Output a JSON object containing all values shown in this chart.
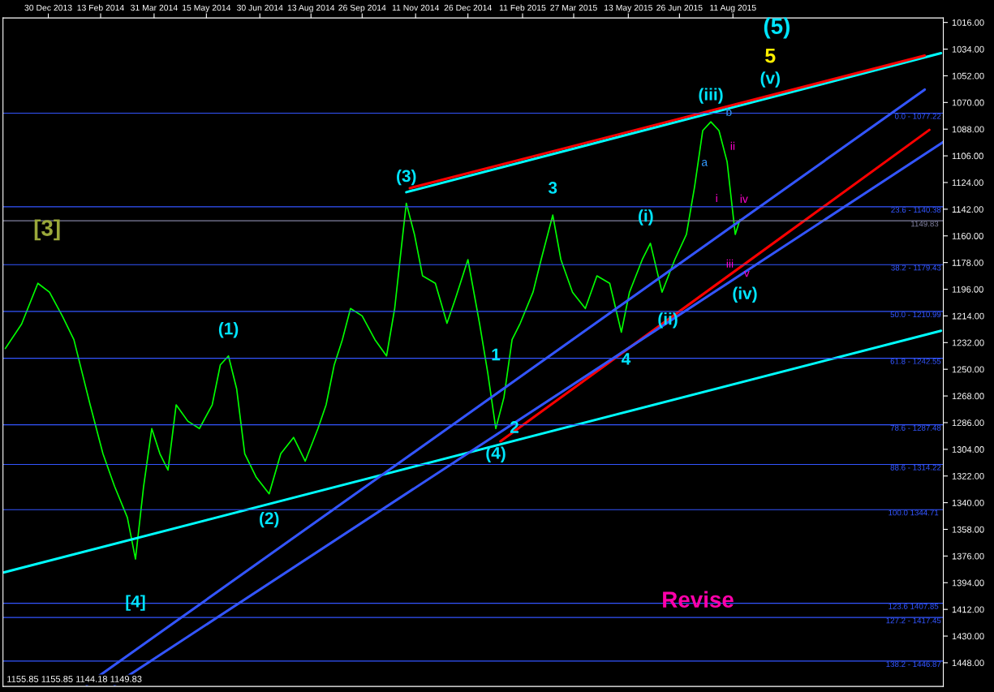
{
  "chart_data": {
    "type": "line",
    "x": [
      "2013-11-23",
      "2013-12-07",
      "2013-12-21",
      "2013-12-31",
      "2014-01-11",
      "2014-01-21",
      "2014-01-28",
      "2014-02-04",
      "2014-02-15",
      "2014-02-25",
      "2014-03-08",
      "2014-03-15",
      "2014-03-22",
      "2014-03-29",
      "2014-04-05",
      "2014-04-12",
      "2014-04-19",
      "2014-04-29",
      "2014-05-09",
      "2014-05-20",
      "2014-05-27",
      "2014-06-03",
      "2014-06-10",
      "2014-06-17",
      "2014-06-27",
      "2014-07-08",
      "2014-07-18",
      "2014-07-29",
      "2014-08-08",
      "2014-08-19",
      "2014-08-26",
      "2014-09-02",
      "2014-09-09",
      "2014-09-16",
      "2014-09-26",
      "2014-10-07",
      "2014-10-17",
      "2014-10-24",
      "2014-10-31",
      "2014-11-03",
      "2014-11-10",
      "2014-11-17",
      "2014-11-28",
      "2014-12-08",
      "2014-12-15",
      "2014-12-26",
      "2015-01-05",
      "2015-01-12",
      "2015-01-19",
      "2015-01-26",
      "2015-02-02",
      "2015-02-09",
      "2015-02-20",
      "2015-02-27",
      "2015-03-09",
      "2015-03-16",
      "2015-03-26",
      "2015-04-06",
      "2015-04-16",
      "2015-04-27",
      "2015-05-07",
      "2015-05-14",
      "2015-05-25",
      "2015-06-01",
      "2015-06-11",
      "2015-06-22",
      "2015-07-02",
      "2015-07-09",
      "2015-07-16",
      "2015-07-23",
      "2015-07-30",
      "2015-08-06",
      "2015-08-13",
      "2015-08-17"
    ],
    "series": [
      {
        "color": "#00ff00",
        "values": [
          1236,
          1219.5,
          1192,
          1198,
          1214,
          1230,
          1252,
          1274,
          1307,
          1329,
          1350,
          1378,
          1329,
          1290,
          1307,
          1318,
          1274,
          1285,
          1290,
          1274,
          1247,
          1241,
          1263,
          1307,
          1323,
          1334,
          1307,
          1296,
          1312,
          1290,
          1274,
          1247,
          1230,
          1209,
          1214,
          1230,
          1241,
          1209,
          1159,
          1138,
          1159,
          1187,
          1192,
          1219,
          1203,
          1176,
          1219,
          1252,
          1290,
          1269,
          1230,
          1219,
          1198,
          1176,
          1146,
          1176,
          1198,
          1209,
          1187,
          1192,
          1225,
          1198,
          1176,
          1165,
          1198,
          1176,
          1159,
          1127,
          1089,
          1083,
          1089,
          1110,
          1159,
          1149
        ]
      },
      {
        "color": "#00ffff",
        "x": [
          "2013-11-22",
          "2016-02-06"
        ],
        "values": [
          1387,
          1224
        ]
      },
      {
        "color": "#00ffff",
        "x": [
          "2014-11-03",
          "2016-02-06"
        ],
        "values": [
          1130.5,
          1036.7
        ]
      },
      {
        "color": "#ff0000",
        "x": [
          "2014-11-06",
          "2016-01-23"
        ],
        "values": [
          1127.8,
          1038.4
        ]
      },
      {
        "color": "#ff0000",
        "x": [
          "2015-01-23",
          "2016-01-27"
        ],
        "values": [
          1298.6,
          1088.5
        ]
      },
      {
        "color": "#3355ff",
        "x": [
          "2014-02-01",
          "2016-01-23"
        ],
        "values": [
          1462.8,
          1061.3
        ]
      },
      {
        "color": "#3355ff",
        "x": [
          "2014-02-25",
          "2016-02-08"
        ],
        "values": [
          1462.8,
          1096.7
        ]
      }
    ],
    "xlim": [
      "2013-11-21",
      "2016-02-08"
    ],
    "xticks": [
      {
        "value": "2013-12-30",
        "label": "30 Dec 2013"
      },
      {
        "value": "2014-02-13",
        "label": "13 Feb 2014"
      },
      {
        "value": "2014-03-31",
        "label": "31 Mar 2014"
      },
      {
        "value": "2014-05-15",
        "label": "15 May 2014"
      },
      {
        "value": "2014-06-30",
        "label": "30 Jun 2014"
      },
      {
        "value": "2014-08-13",
        "label": "13 Aug 2014"
      },
      {
        "value": "2014-09-26",
        "label": "26 Sep 2014"
      },
      {
        "value": "2014-11-11",
        "label": "11 Nov 2014"
      },
      {
        "value": "2014-12-26",
        "label": "26 Dec 2014"
      },
      {
        "value": "2015-02-11",
        "label": "11 Feb 2015"
      },
      {
        "value": "2015-03-27",
        "label": "27 Mar 2015"
      },
      {
        "value": "2015-05-13",
        "label": "13 May 2015"
      },
      {
        "value": "2015-06-26",
        "label": "26 Jun 2015"
      },
      {
        "value": "2015-08-11",
        "label": "11 Aug 2015"
      }
    ],
    "ylim": [
      1464,
      1013
    ],
    "yticks": [
      {
        "value": 1016,
        "label": "1016.00"
      },
      {
        "value": 1034,
        "label": "1034.00"
      },
      {
        "value": 1052,
        "label": "1052.00"
      },
      {
        "value": 1070,
        "label": "1070.00"
      },
      {
        "value": 1088,
        "label": "1088.00"
      },
      {
        "value": 1106,
        "label": "1106.00"
      },
      {
        "value": 1124,
        "label": "1124.00"
      },
      {
        "value": 1142,
        "label": "1142.00"
      },
      {
        "value": 1160,
        "label": "1160.00"
      },
      {
        "value": 1178,
        "label": "1178.00"
      },
      {
        "value": 1196,
        "label": "1196.00"
      },
      {
        "value": 1214,
        "label": "1214.00"
      },
      {
        "value": 1232,
        "label": "1232.00"
      },
      {
        "value": 1250,
        "label": "1250.00"
      },
      {
        "value": 1268,
        "label": "1268.00"
      },
      {
        "value": 1286,
        "label": "1286.00"
      },
      {
        "value": 1304,
        "label": "1304.00"
      },
      {
        "value": 1322,
        "label": "1322.00"
      },
      {
        "value": 1340,
        "label": "1340.00"
      },
      {
        "value": 1358,
        "label": "1358.00"
      },
      {
        "value": 1376,
        "label": "1376.00"
      },
      {
        "value": 1394,
        "label": "1394.00"
      },
      {
        "value": 1412,
        "label": "1412.00"
      },
      {
        "value": 1430,
        "label": "1430.00"
      },
      {
        "value": 1448,
        "label": "1448.00"
      }
    ],
    "ref_lines": [
      {
        "axis": "y",
        "value": 1077.22,
        "color": "#3355ff"
      },
      {
        "axis": "y",
        "value": 1140.38,
        "color": "#3355ff"
      },
      {
        "axis": "y",
        "value": 1149.83,
        "label": "1149.83",
        "color": "#8080a0"
      },
      {
        "axis": "y",
        "value": 1179.43,
        "color": "#3355ff"
      },
      {
        "axis": "y",
        "value": 1210.99,
        "color": "#3355ff"
      },
      {
        "axis": "y",
        "value": 1242.55,
        "color": "#3355ff"
      },
      {
        "axis": "y",
        "value": 1287.48,
        "color": "#3355ff"
      },
      {
        "axis": "y",
        "value": 1314.22,
        "color": "#3355ff"
      },
      {
        "axis": "y",
        "value": 1344.71,
        "label": "100.0 1344.71",
        "color": "#3355ff"
      },
      {
        "axis": "y",
        "value": 1407.85,
        "label": "123.6 1407.85",
        "color": "#3355ff"
      },
      {
        "axis": "y",
        "value": 1417.45,
        "color": "#3355ff"
      },
      {
        "axis": "y",
        "value": 1446.87,
        "color": "#3355ff"
      }
    ],
    "annotations": [
      {
        "text": "0.0 - 1077.22",
        "x": "2016-02-08",
        "y": 1077.22
      },
      {
        "text": "23.6 - 1140.38",
        "x": "2016-02-08",
        "y": 1140.38
      },
      {
        "text": "38.2 - 1179.43",
        "x": "2016-02-08",
        "y": 1179.43
      },
      {
        "text": "50.0 - 1210.99",
        "x": "2016-02-08",
        "y": 1210.99
      },
      {
        "text": "61.8 - 1242.55",
        "x": "2016-02-08",
        "y": 1242.55
      },
      {
        "text": "78.6 - 1287.48",
        "x": "2016-02-08",
        "y": 1287.48
      },
      {
        "text": "88.6 - 1314.22",
        "x": "2016-02-08",
        "y": 1314.22
      },
      {
        "text": "127.2 - 1417.45",
        "x": "2016-02-08",
        "y": 1417.45
      },
      {
        "text": "138.2 - 1446.87",
        "x": "2016-02-08",
        "y": 1446.87
      },
      "(5)",
      "5",
      "(v)",
      {
        "text": "(iii)",
        "x": "2015-07-23",
        "y": 1083
      },
      {
        "text": "(3)",
        "x": "2014-11-03",
        "y": 1138
      },
      {
        "text": "3",
        "x": "2015-03-09",
        "y": 1146
      },
      {
        "text": "(i)",
        "x": "2015-05-28",
        "y": 1147.5
      },
      {
        "text": "(1)",
        "x": "2014-06-03",
        "y": 1241
      },
      "[3]",
      {
        "text": "[4]",
        "x": "2014-03-15",
        "y": 1407.6
      },
      {
        "text": "(2)",
        "x": "2014-07-08",
        "y": 1334
      },
      {
        "text": "(4)",
        "x": "2015-01-19",
        "y": 1290
      },
      {
        "text": "1",
        "x": "2015-01-19",
        "y": 1241
      },
      {
        "text": "2",
        "x": "2015-02-04",
        "y": 1290
      },
      {
        "text": "4",
        "x": "2015-05-11",
        "y": 1244
      },
      {
        "text": "(ii)",
        "x": "2015-06-16",
        "y": 1217
      },
      "(iv)",
      "a",
      "b",
      "i",
      "ii",
      "iii",
      "iv",
      "v",
      "Revise",
      "1155.85 1155.85 1144.18 1149.83"
    ]
  }
}
